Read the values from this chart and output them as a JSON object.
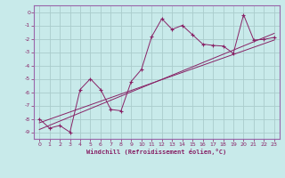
{
  "background_color": "#c8eaea",
  "grid_color": "#aacccc",
  "line_color": "#882266",
  "border_color": "#9966aa",
  "xlim": [
    -0.5,
    23.5
  ],
  "ylim": [
    -9.5,
    0.5
  ],
  "xticks": [
    0,
    1,
    2,
    3,
    4,
    5,
    6,
    7,
    8,
    9,
    10,
    11,
    12,
    13,
    14,
    15,
    16,
    17,
    18,
    19,
    20,
    21,
    22,
    23
  ],
  "yticks": [
    0,
    -1,
    -2,
    -3,
    -4,
    -5,
    -6,
    -7,
    -8,
    -9
  ],
  "xlabel": "Windchill (Refroidissement éolien,°C)",
  "series1_x": [
    0,
    1,
    2,
    3,
    4,
    5,
    6,
    7,
    8,
    9,
    10,
    11,
    12,
    13,
    14,
    15,
    16,
    17,
    18,
    19,
    20,
    21,
    22,
    23
  ],
  "series1_y": [
    -8.0,
    -8.7,
    -8.5,
    -9.0,
    -5.8,
    -5.0,
    -5.8,
    -7.3,
    -7.4,
    -5.2,
    -4.3,
    -1.85,
    -0.5,
    -1.3,
    -1.0,
    -1.7,
    -2.4,
    -2.5,
    -2.55,
    -3.1,
    -0.2,
    -2.1,
    -2.05,
    -1.9
  ],
  "series3_x": [
    0,
    23
  ],
  "series3_y": [
    -8.3,
    -2.1
  ],
  "series4_x": [
    0,
    23
  ],
  "series4_y": [
    -8.8,
    -1.6
  ]
}
